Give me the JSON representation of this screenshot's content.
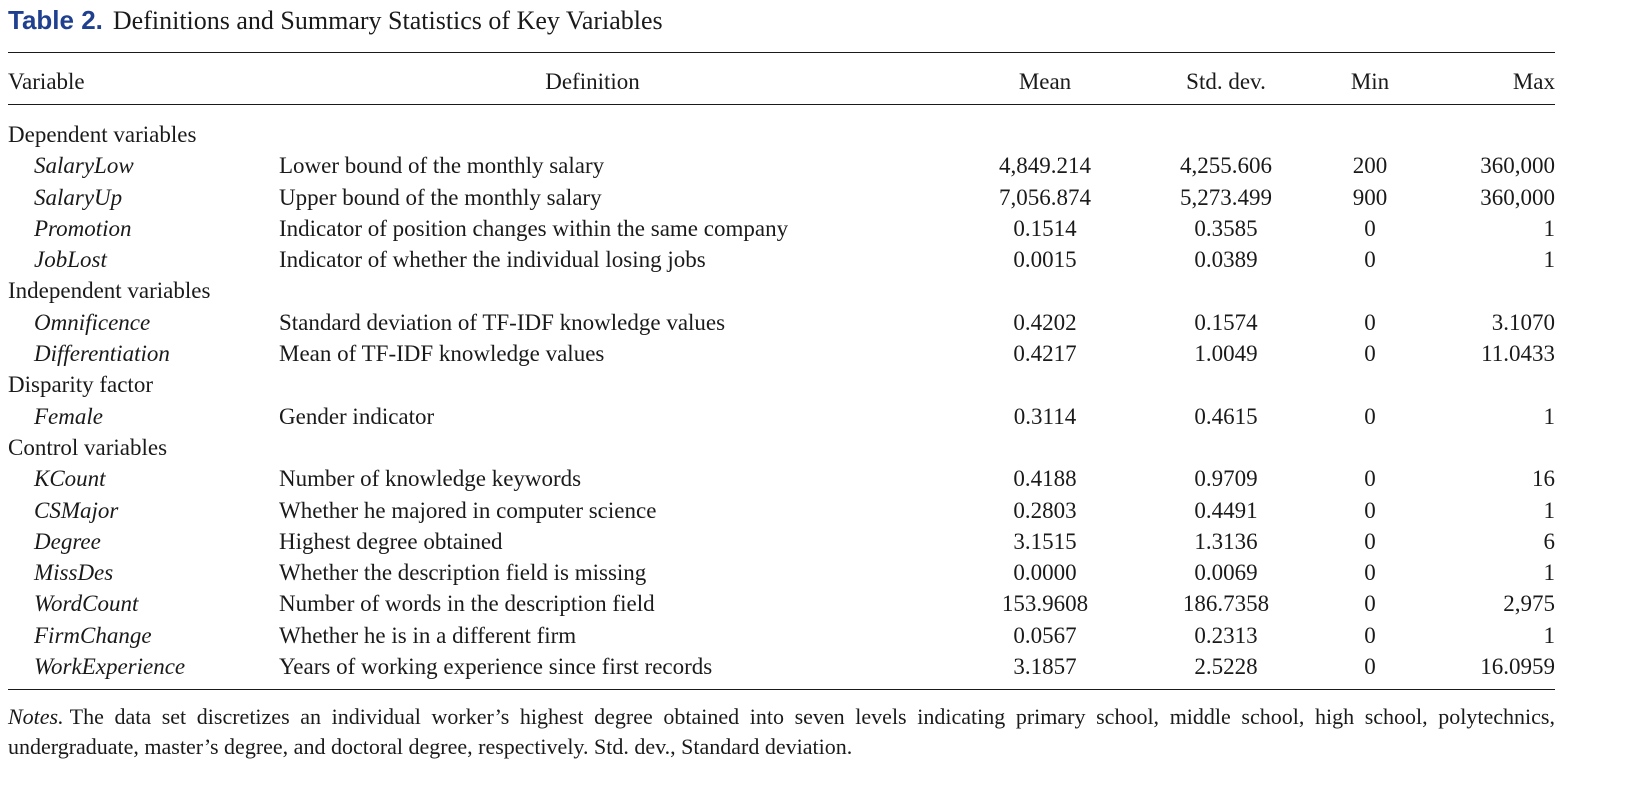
{
  "caption": {
    "label": "Table 2.",
    "title": "Definitions and Summary Statistics of Key Variables"
  },
  "header": {
    "variable": "Variable",
    "definition": "Definition",
    "mean": "Mean",
    "sd": "Std. dev.",
    "min": "Min",
    "max": "Max"
  },
  "rows": [
    {
      "group": "Dependent variables"
    },
    {
      "variable": "SalaryLow",
      "definition": "Lower bound of the monthly salary",
      "mean": "4,849.214",
      "sd": "4,255.606",
      "min": "200",
      "max": "360,000"
    },
    {
      "variable": "SalaryUp",
      "definition": "Upper bound of the monthly salary",
      "mean": "7,056.874",
      "sd": "5,273.499",
      "min": "900",
      "max": "360,000"
    },
    {
      "variable": "Promotion",
      "definition": "Indicator of position changes within the same company",
      "mean": "0.1514",
      "sd": "0.3585",
      "min": "0",
      "max": "1"
    },
    {
      "variable": "JobLost",
      "definition": "Indicator of whether the individual losing jobs",
      "mean": "0.0015",
      "sd": "0.0389",
      "min": "0",
      "max": "1"
    },
    {
      "group": "Independent variables"
    },
    {
      "variable": "Omnificence",
      "definition": "Standard deviation of TF-IDF knowledge values",
      "mean": "0.4202",
      "sd": "0.1574",
      "min": "0",
      "max": "3.1070"
    },
    {
      "variable": "Differentiation",
      "definition": "Mean of TF-IDF knowledge values",
      "mean": "0.4217",
      "sd": "1.0049",
      "min": "0",
      "max": "11.0433"
    },
    {
      "group": "Disparity factor"
    },
    {
      "variable": "Female",
      "definition": "Gender indicator",
      "mean": "0.3114",
      "sd": "0.4615",
      "min": "0",
      "max": "1"
    },
    {
      "group": "Control variables"
    },
    {
      "variable": "KCount",
      "definition": "Number of knowledge keywords",
      "mean": "0.4188",
      "sd": "0.9709",
      "min": "0",
      "max": "16"
    },
    {
      "variable": "CSMajor",
      "definition": "Whether he majored in computer science",
      "mean": "0.2803",
      "sd": "0.4491",
      "min": "0",
      "max": "1"
    },
    {
      "variable": "Degree",
      "definition": "Highest degree obtained",
      "mean": "3.1515",
      "sd": "1.3136",
      "min": "0",
      "max": "6"
    },
    {
      "variable": "MissDes",
      "definition": "Whether the description field is missing",
      "mean": "0.0000",
      "sd": "0.0069",
      "min": "0",
      "max": "1"
    },
    {
      "variable": "WordCount",
      "definition": "Number of words in the description field",
      "mean": "153.9608",
      "sd": "186.7358",
      "min": "0",
      "max": "2,975"
    },
    {
      "variable": "FirmChange",
      "definition": "Whether he is in a different firm",
      "mean": "0.0567",
      "sd": "0.2313",
      "min": "0",
      "max": "1"
    },
    {
      "variable": "WorkExperience",
      "definition": "Years of working experience since first records",
      "mean": "3.1857",
      "sd": "2.5228",
      "min": "0",
      "max": "16.0959"
    }
  ],
  "notes": {
    "label": "Notes.",
    "text": "The data set discretizes an individual worker’s highest degree obtained into seven levels indicating primary school, middle school, high school, polytechnics, undergraduate, master’s degree, and doctoral degree, respectively. Std. dev., Standard deviation."
  }
}
